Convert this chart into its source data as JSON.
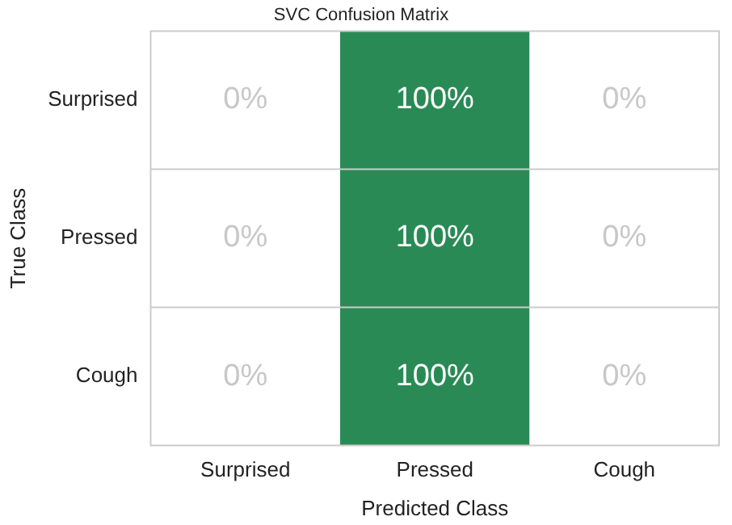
{
  "chart_data": {
    "type": "heatmap",
    "title": "SVC Confusion Matrix",
    "xlabel": "Predicted Class",
    "ylabel": "True Class",
    "categories": [
      "Surprised",
      "Pressed",
      "Cough"
    ],
    "y_categories": [
      "Surprised",
      "Pressed",
      "Cough"
    ],
    "cells": [
      [
        0,
        100,
        0
      ],
      [
        0,
        100,
        0
      ],
      [
        0,
        100,
        0
      ]
    ],
    "cell_labels": [
      [
        "0%",
        "100%",
        "0%"
      ],
      [
        "0%",
        "100%",
        "0%"
      ],
      [
        "0%",
        "100%",
        "0%"
      ]
    ],
    "color": "#2a8a56"
  }
}
